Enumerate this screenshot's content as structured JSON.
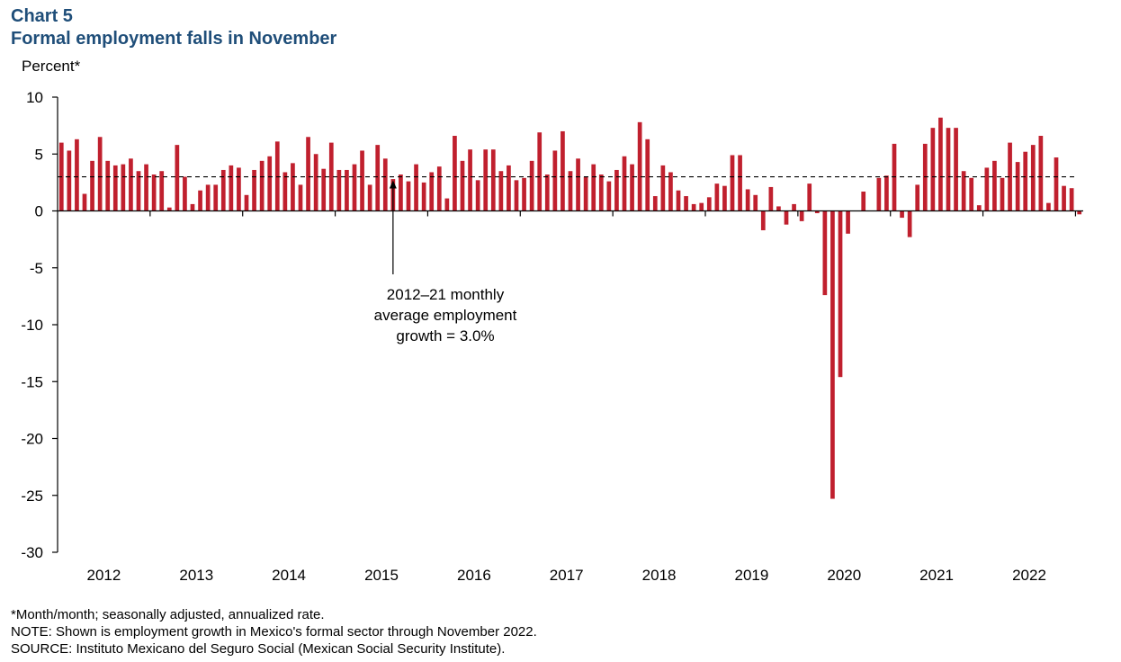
{
  "header": {
    "chart_label": "Chart 5",
    "title": "Formal employment falls in November",
    "unit": "Percent*"
  },
  "annotation": {
    "line1": "2012–21 monthly",
    "line2": "average employment",
    "line3": "growth = 3.0%"
  },
  "notes": {
    "footnote": "*Month/month; seasonally adjusted, annualized rate.",
    "note": "NOTE: Shown is employment growth in Mexico's formal sector through November 2022.",
    "source": "SOURCE: Instituto Mexicano del Seguro Social (Mexican Social Security Institute)."
  },
  "chart_data": {
    "type": "bar",
    "title": "Formal employment falls in November",
    "ylabel": "Percent*",
    "ylim": [
      -30,
      10
    ],
    "yticks": [
      10,
      5,
      0,
      -5,
      -10,
      -15,
      -20,
      -25,
      -30
    ],
    "x_labels": [
      "2012",
      "2013",
      "2014",
      "2015",
      "2016",
      "2017",
      "2018",
      "2019",
      "2020",
      "2021",
      "2022"
    ],
    "x_start": "2012-01",
    "x_end": "2022-11",
    "bar_color": "#c0202e",
    "reference_line": {
      "value": 3.0,
      "style": "dashed"
    },
    "series": [
      {
        "values": [
          6.0,
          5.3,
          6.3,
          1.5,
          4.4,
          6.5,
          4.4,
          4.0,
          4.1,
          4.6,
          3.5,
          4.1,
          3.2,
          3.5,
          0.3,
          5.8,
          3.0,
          0.6,
          1.8,
          2.3,
          2.3,
          3.6,
          4.0,
          3.8,
          1.4,
          3.6,
          4.4,
          4.8,
          6.1,
          3.4,
          4.2,
          2.3,
          6.5,
          5.0,
          3.7,
          6.0,
          3.6,
          3.6,
          4.1,
          5.3,
          2.3,
          5.8,
          4.6,
          2.8,
          3.2,
          2.6,
          4.1,
          2.5,
          3.4,
          3.9,
          1.1,
          6.6,
          4.4,
          5.4,
          2.7,
          5.4,
          5.4,
          3.5,
          4.0,
          2.7,
          2.9,
          4.4,
          6.9,
          3.2,
          5.3,
          7.0,
          3.5,
          4.6,
          3.0,
          4.1,
          3.2,
          2.6,
          3.6,
          4.8,
          4.1,
          7.8,
          6.3,
          1.3,
          4.0,
          3.4,
          1.8,
          1.3,
          0.6,
          0.7,
          1.2,
          2.4,
          2.2,
          4.9,
          4.9,
          1.9,
          1.4,
          -1.7,
          2.1,
          0.4,
          -1.2,
          0.6,
          -0.9,
          2.4,
          -0.2,
          -7.4,
          -25.3,
          -14.6,
          -2.0,
          0.0,
          1.7,
          0.0,
          2.9,
          3.1,
          5.9,
          -0.6,
          -2.3,
          2.3,
          5.9,
          7.3,
          8.2,
          7.3,
          7.3,
          3.5,
          2.9,
          0.5,
          3.8,
          4.4,
          2.9,
          6.0,
          4.3,
          5.2,
          5.8,
          6.6,
          0.7,
          4.7,
          2.2,
          2.0,
          -0.3
        ]
      }
    ]
  }
}
